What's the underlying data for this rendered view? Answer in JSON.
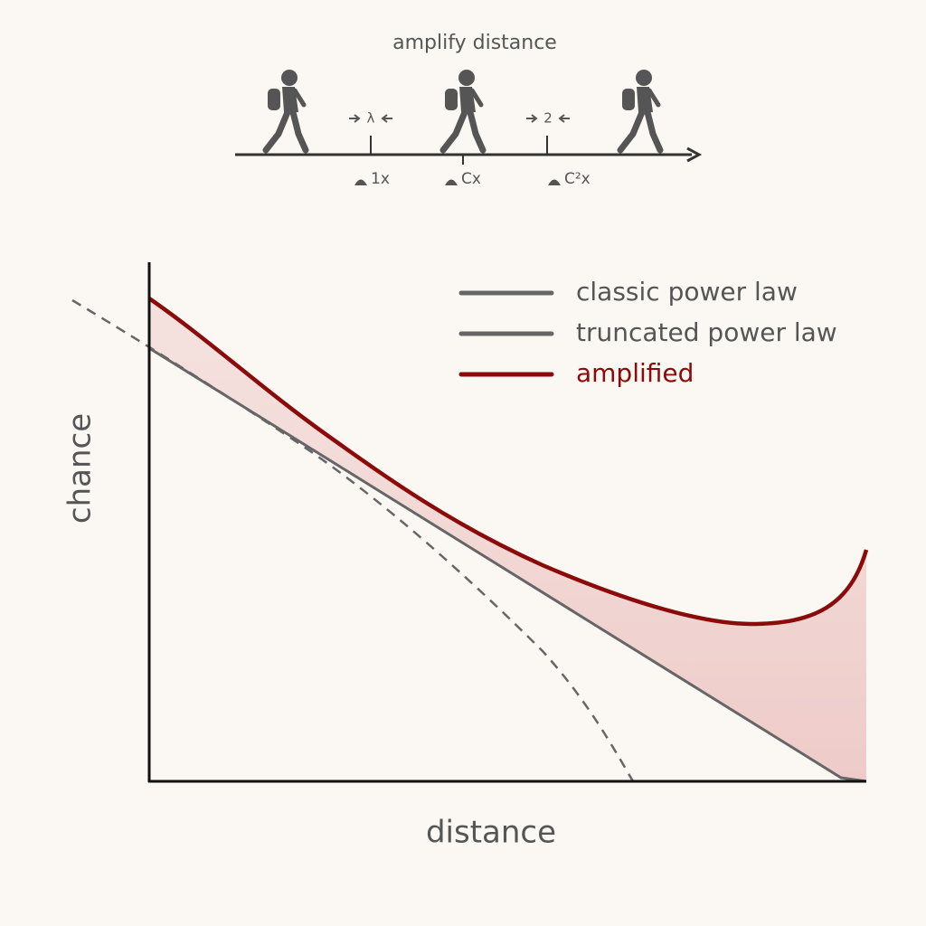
{
  "header": {
    "title": "amplify distance"
  },
  "scale": {
    "steps": [
      "λ",
      "2"
    ],
    "marks": [
      "1x",
      "Cx",
      "C²x"
    ]
  },
  "legend": [
    "classic power law",
    "truncated power law",
    "amplified"
  ],
  "axes": {
    "y_label": "chance",
    "x_label": "distance"
  }
}
